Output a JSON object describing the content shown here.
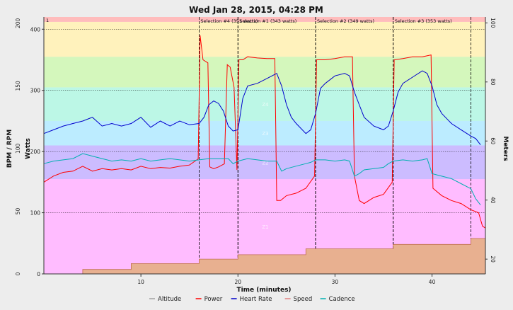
{
  "chart_data": {
    "type": "line",
    "title": "Wed Jan 28, 2015, 04:28 PM",
    "xlabel": "Time (minutes)",
    "ylabel_left_outer": "BPM / RPM",
    "ylabel_left_inner": "Watts",
    "ylabel_right": "Meters",
    "x_range": [
      0,
      45.5
    ],
    "x_ticks": [
      10,
      20,
      30,
      40
    ],
    "watts_range": [
      0,
      420
    ],
    "watts_ticks": [
      0,
      100,
      200,
      300,
      400
    ],
    "bpm_range": [
      0,
      205
    ],
    "bpm_ticks": [
      0,
      50,
      100,
      150,
      200
    ],
    "meters_range": [
      15,
      102
    ],
    "meters_ticks": [
      20,
      40,
      60,
      80,
      100
    ],
    "grid": true,
    "legend_position": "bottom",
    "power_zones": [
      {
        "name": "Z1",
        "from": 0,
        "to": 155,
        "color": "#ffbcff"
      },
      {
        "name": "Z2",
        "from": 155,
        "to": 210,
        "color": "#ccbcff"
      },
      {
        "name": "Z3",
        "from": 210,
        "to": 250,
        "color": "#bcecff"
      },
      {
        "name": "Z4",
        "from": 250,
        "to": 305,
        "color": "#bcf7e6"
      },
      {
        "name": "",
        "from": 305,
        "to": 355,
        "color": "#d4f7bc"
      },
      {
        "name": "",
        "from": 355,
        "to": 412,
        "color": "#fff2bc"
      },
      {
        "name": "",
        "from": 412,
        "to": 420,
        "color": "#ffbcbc"
      }
    ],
    "corner_label": "1",
    "selections": [
      {
        "label": "Selection #4 (351 watts)",
        "start": 16.0,
        "end": 20.0
      },
      {
        "label": "Selection #1 (343 watts)",
        "start": 20.0,
        "end": 28.0
      },
      {
        "label": "Selection #2 (349 watts)",
        "start": 28.0,
        "end": 36.0
      },
      {
        "label": "Selection #3 (353 watts)",
        "start": 36.0,
        "end": 44.0
      }
    ],
    "series": [
      {
        "name": "Altitude",
        "axis": "meters",
        "color": "#e0a080",
        "points": [
          [
            0,
            15
          ],
          [
            4,
            15
          ],
          [
            4,
            16.5
          ],
          [
            9,
            16.5
          ],
          [
            9,
            18.5
          ],
          [
            16,
            18.5
          ],
          [
            16,
            20
          ],
          [
            20,
            20
          ],
          [
            20,
            21.5
          ],
          [
            27,
            21.5
          ],
          [
            27,
            23.5
          ],
          [
            36,
            23.5
          ],
          [
            36,
            25
          ],
          [
            44,
            25
          ],
          [
            44,
            27
          ],
          [
            45.5,
            27
          ]
        ]
      },
      {
        "name": "Power",
        "axis": "watts",
        "color": "#ff0000",
        "points": [
          [
            0,
            150
          ],
          [
            1,
            160
          ],
          [
            2,
            166
          ],
          [
            3,
            168
          ],
          [
            4,
            176
          ],
          [
            5,
            168
          ],
          [
            6,
            172
          ],
          [
            7,
            170
          ],
          [
            8,
            172
          ],
          [
            9,
            170
          ],
          [
            10,
            176
          ],
          [
            11,
            172
          ],
          [
            12,
            174
          ],
          [
            13,
            173
          ],
          [
            14,
            176
          ],
          [
            15,
            178
          ],
          [
            15.9,
            188
          ],
          [
            16.1,
            390
          ],
          [
            16.4,
            350
          ],
          [
            16.9,
            345
          ],
          [
            17.1,
            175
          ],
          [
            17.5,
            172
          ],
          [
            18,
            175
          ],
          [
            18.6,
            180
          ],
          [
            18.9,
            342
          ],
          [
            19.2,
            338
          ],
          [
            19.6,
            305
          ],
          [
            19.9,
            170
          ],
          [
            20.1,
            350
          ],
          [
            20.5,
            350
          ],
          [
            21,
            355
          ],
          [
            22,
            353
          ],
          [
            23,
            352
          ],
          [
            23.8,
            352
          ],
          [
            24.0,
            120
          ],
          [
            24.4,
            120
          ],
          [
            25,
            128
          ],
          [
            26,
            132
          ],
          [
            27,
            140
          ],
          [
            27.9,
            160
          ],
          [
            28.1,
            350
          ],
          [
            29,
            350
          ],
          [
            30,
            352
          ],
          [
            31,
            355
          ],
          [
            31.8,
            355
          ],
          [
            32.0,
            160
          ],
          [
            32.5,
            120
          ],
          [
            33,
            115
          ],
          [
            34,
            125
          ],
          [
            35,
            130
          ],
          [
            35.9,
            150
          ],
          [
            36.1,
            350
          ],
          [
            37,
            352
          ],
          [
            38,
            355
          ],
          [
            39,
            355
          ],
          [
            39.9,
            358
          ],
          [
            40.1,
            140
          ],
          [
            41,
            128
          ],
          [
            42,
            120
          ],
          [
            43,
            115
          ],
          [
            44,
            105
          ],
          [
            44.8,
            100
          ],
          [
            45.2,
            78
          ],
          [
            45.5,
            75
          ]
        ]
      },
      {
        "name": "Heart Rate",
        "axis": "bpm",
        "color": "#0000cc",
        "points": [
          [
            0,
            112
          ],
          [
            1,
            115
          ],
          [
            2,
            118
          ],
          [
            3,
            120
          ],
          [
            4,
            122
          ],
          [
            5,
            125
          ],
          [
            6,
            118
          ],
          [
            7,
            120
          ],
          [
            8,
            118
          ],
          [
            9,
            120
          ],
          [
            10,
            125
          ],
          [
            11,
            117
          ],
          [
            12,
            122
          ],
          [
            13,
            118
          ],
          [
            14,
            122
          ],
          [
            15,
            119
          ],
          [
            16,
            120
          ],
          [
            16.5,
            125
          ],
          [
            17,
            135
          ],
          [
            17.5,
            138
          ],
          [
            18,
            136
          ],
          [
            18.5,
            130
          ],
          [
            19,
            118
          ],
          [
            19.5,
            114
          ],
          [
            20,
            115
          ],
          [
            20.5,
            140
          ],
          [
            21,
            150
          ],
          [
            22,
            152
          ],
          [
            23,
            156
          ],
          [
            24,
            160
          ],
          [
            24.5,
            150
          ],
          [
            25,
            135
          ],
          [
            25.5,
            125
          ],
          [
            26,
            120
          ],
          [
            27,
            112
          ],
          [
            27.5,
            115
          ],
          [
            28,
            128
          ],
          [
            28.5,
            148
          ],
          [
            29,
            152
          ],
          [
            30,
            158
          ],
          [
            31,
            160
          ],
          [
            31.5,
            158
          ],
          [
            32,
            145
          ],
          [
            32.5,
            135
          ],
          [
            33,
            125
          ],
          [
            34,
            118
          ],
          [
            35,
            115
          ],
          [
            35.5,
            118
          ],
          [
            36,
            130
          ],
          [
            36.5,
            145
          ],
          [
            37,
            152
          ],
          [
            38,
            157
          ],
          [
            39,
            162
          ],
          [
            39.5,
            160
          ],
          [
            40,
            150
          ],
          [
            40.5,
            135
          ],
          [
            41,
            128
          ],
          [
            42,
            120
          ],
          [
            43,
            115
          ],
          [
            44,
            110
          ],
          [
            44.5,
            108
          ],
          [
            45,
            103
          ]
        ]
      },
      {
        "name": "Speed",
        "axis": "meters",
        "color": "#e08080",
        "points": []
      },
      {
        "name": "Cadence",
        "axis": "bpm",
        "color": "#00b0b0",
        "points": [
          [
            0,
            88
          ],
          [
            1,
            90
          ],
          [
            2,
            91
          ],
          [
            3,
            92
          ],
          [
            4,
            96
          ],
          [
            5,
            94
          ],
          [
            6,
            92
          ],
          [
            7,
            90
          ],
          [
            8,
            91
          ],
          [
            9,
            90
          ],
          [
            10,
            92
          ],
          [
            11,
            90
          ],
          [
            12,
            91
          ],
          [
            13,
            92
          ],
          [
            14,
            91
          ],
          [
            15,
            90
          ],
          [
            16,
            91
          ],
          [
            17,
            92
          ],
          [
            18,
            92
          ],
          [
            19,
            92
          ],
          [
            19.5,
            88
          ],
          [
            20,
            90
          ],
          [
            21,
            92
          ],
          [
            22,
            91
          ],
          [
            23,
            90
          ],
          [
            24,
            90
          ],
          [
            24.5,
            82
          ],
          [
            25,
            84
          ],
          [
            26,
            86
          ],
          [
            27,
            88
          ],
          [
            27.5,
            89
          ],
          [
            28,
            91
          ],
          [
            29,
            91
          ],
          [
            30,
            90
          ],
          [
            31,
            91
          ],
          [
            31.5,
            90
          ],
          [
            32,
            78
          ],
          [
            32.5,
            80
          ],
          [
            33,
            83
          ],
          [
            34,
            84
          ],
          [
            35,
            85
          ],
          [
            35.5,
            88
          ],
          [
            36,
            90
          ],
          [
            37,
            91
          ],
          [
            38,
            90
          ],
          [
            39,
            91
          ],
          [
            39.5,
            92
          ],
          [
            40,
            80
          ],
          [
            41,
            78
          ],
          [
            42,
            76
          ],
          [
            43,
            72
          ],
          [
            44,
            68
          ],
          [
            44.5,
            60
          ],
          [
            45,
            55
          ]
        ]
      }
    ]
  }
}
